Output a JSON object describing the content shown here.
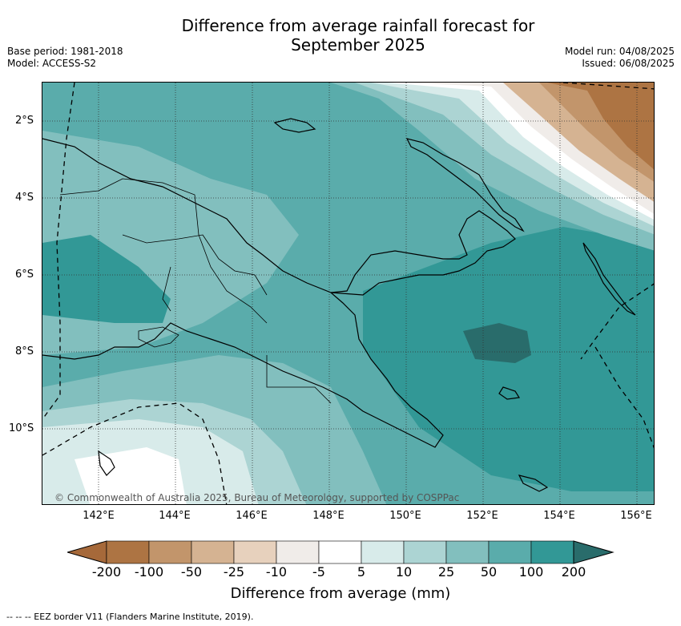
{
  "title_line1": "Difference from average rainfall forecast for",
  "title_line2": "September 2025",
  "base_period": "Base period: 1981-2018",
  "model": "Model: ACCESS-S2",
  "model_run": "Model run: 04/08/2025",
  "issued": "Issued: 06/08/2025",
  "copyright": "© Commonwealth of Australia 2025, Bureau of Meteorology, supported by COSPPac",
  "lat_labels": [
    "2°S",
    "4°S",
    "6°S",
    "8°S",
    "10°S"
  ],
  "lon_labels": [
    "142°E",
    "144°E",
    "146°E",
    "148°E",
    "150°E",
    "152°E",
    "154°E",
    "156°E"
  ],
  "colorbar": {
    "title": "Difference from average (mm)",
    "ticks": [
      "-200",
      "-100",
      "-50",
      "-25",
      "-10",
      "-5",
      "5",
      "10",
      "25",
      "50",
      "100",
      "200"
    ],
    "colors": [
      "#a6693a",
      "#ad7443",
      "#c2956b",
      "#d5b392",
      "#e7d1bd",
      "#f0ece9",
      "#ffffff",
      "#d8ebea",
      "#acd4d3",
      "#82bfbe",
      "#5aacab",
      "#329896",
      "#296c6b"
    ]
  },
  "footnote": "--  --  -- EEZ border V11 (Flanders Marine Institute, 2019)."
}
